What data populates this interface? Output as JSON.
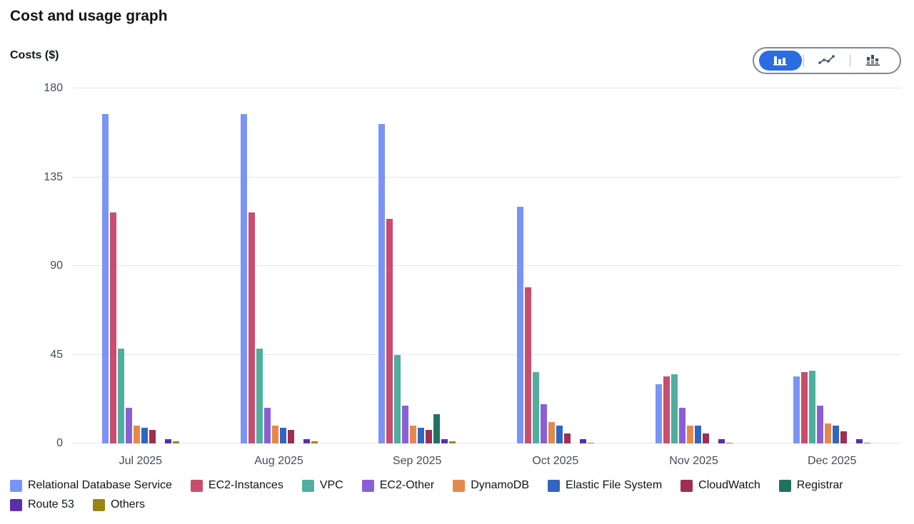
{
  "page": {
    "title": "Cost and usage graph",
    "y_axis_title": "Costs ($)"
  },
  "toolbar": {
    "chart_type_options": [
      {
        "name": "bar",
        "selected": true
      },
      {
        "name": "line",
        "selected": false
      },
      {
        "name": "stacked-bar",
        "selected": false
      }
    ],
    "selected_color": "#2b6de0"
  },
  "chart_data": {
    "type": "bar",
    "title": "Cost and usage graph",
    "ylabel": "Costs ($)",
    "xlabel": "",
    "ylim": [
      0,
      180
    ],
    "yticks": [
      0,
      45,
      90,
      135,
      180
    ],
    "grid": true,
    "legend_position": "bottom",
    "categories": [
      "Jul 2025",
      "Aug 2025",
      "Sep 2025",
      "Oct 2025",
      "Nov 2025",
      "Dec 2025"
    ],
    "series": [
      {
        "name": "Relational Database Service",
        "color": "#7a94f5",
        "values": [
          167,
          167,
          162,
          120,
          30,
          34
        ]
      },
      {
        "name": "EC2-Instances",
        "color": "#c84d6e",
        "values": [
          117,
          117,
          114,
          79,
          34,
          36
        ]
      },
      {
        "name": "VPC",
        "color": "#4fae9d",
        "values": [
          48,
          48,
          45,
          36,
          35,
          37
        ]
      },
      {
        "name": "EC2-Other",
        "color": "#8b5fd4",
        "values": [
          18,
          18,
          19,
          20,
          18,
          19
        ]
      },
      {
        "name": "DynamoDB",
        "color": "#e5894b",
        "values": [
          9,
          9,
          9,
          11,
          9,
          10
        ]
      },
      {
        "name": "Elastic File System",
        "color": "#3166c0",
        "values": [
          8,
          8,
          8,
          9,
          9,
          9
        ]
      },
      {
        "name": "CloudWatch",
        "color": "#9e2f52",
        "values": [
          7,
          7,
          7,
          5,
          5,
          6
        ]
      },
      {
        "name": "Registrar",
        "color": "#20725f",
        "values": [
          0,
          0,
          15,
          0,
          0,
          0
        ]
      },
      {
        "name": "Route 53",
        "color": "#5b2fa8",
        "values": [
          2,
          2,
          2,
          2,
          2,
          2
        ]
      },
      {
        "name": "Others",
        "color": "#9c8412",
        "values": [
          1,
          1,
          1,
          0.5,
          0.5,
          0.5
        ]
      }
    ]
  }
}
